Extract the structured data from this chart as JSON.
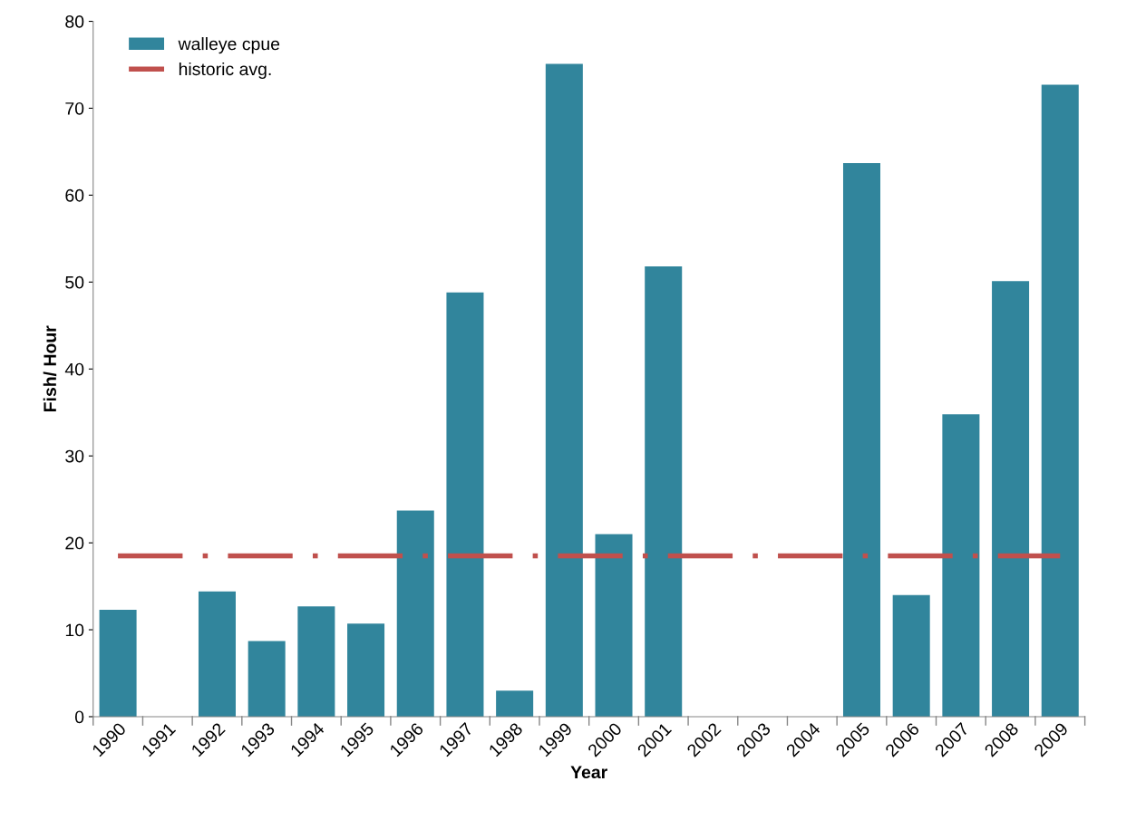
{
  "chart_data": {
    "type": "bar",
    "xlabel": "Year",
    "ylabel": "Fish/ Hour",
    "categories": [
      "1990",
      "1991",
      "1992",
      "1993",
      "1994",
      "1995",
      "1996",
      "1997",
      "1998",
      "1999",
      "2000",
      "2001",
      "2002",
      "2003",
      "2004",
      "2005",
      "2006",
      "2007",
      "2008",
      "2009"
    ],
    "series": [
      {
        "name": "walleye cpue",
        "type": "bar",
        "color": "#31859c",
        "values": [
          12.3,
          null,
          14.4,
          8.7,
          12.7,
          10.7,
          23.7,
          48.8,
          3.0,
          75.1,
          21.0,
          51.8,
          null,
          null,
          null,
          63.7,
          14.0,
          34.8,
          50.1,
          72.7
        ]
      },
      {
        "name": "historic avg.",
        "type": "line",
        "color": "#c0504d",
        "line_style": "dashdot",
        "marker": "none",
        "values": [
          18.5,
          18.5,
          18.5,
          18.5,
          18.5,
          18.5,
          18.5,
          18.5,
          18.5,
          18.5,
          18.5,
          18.5,
          18.5,
          18.5,
          18.5,
          18.5,
          18.5,
          18.5,
          18.5,
          18.5
        ]
      }
    ],
    "ylim": [
      0,
      80
    ],
    "yticks": [
      0,
      10,
      20,
      30,
      40,
      50,
      60,
      70,
      80
    ],
    "grid": false,
    "legend": "top left"
  }
}
